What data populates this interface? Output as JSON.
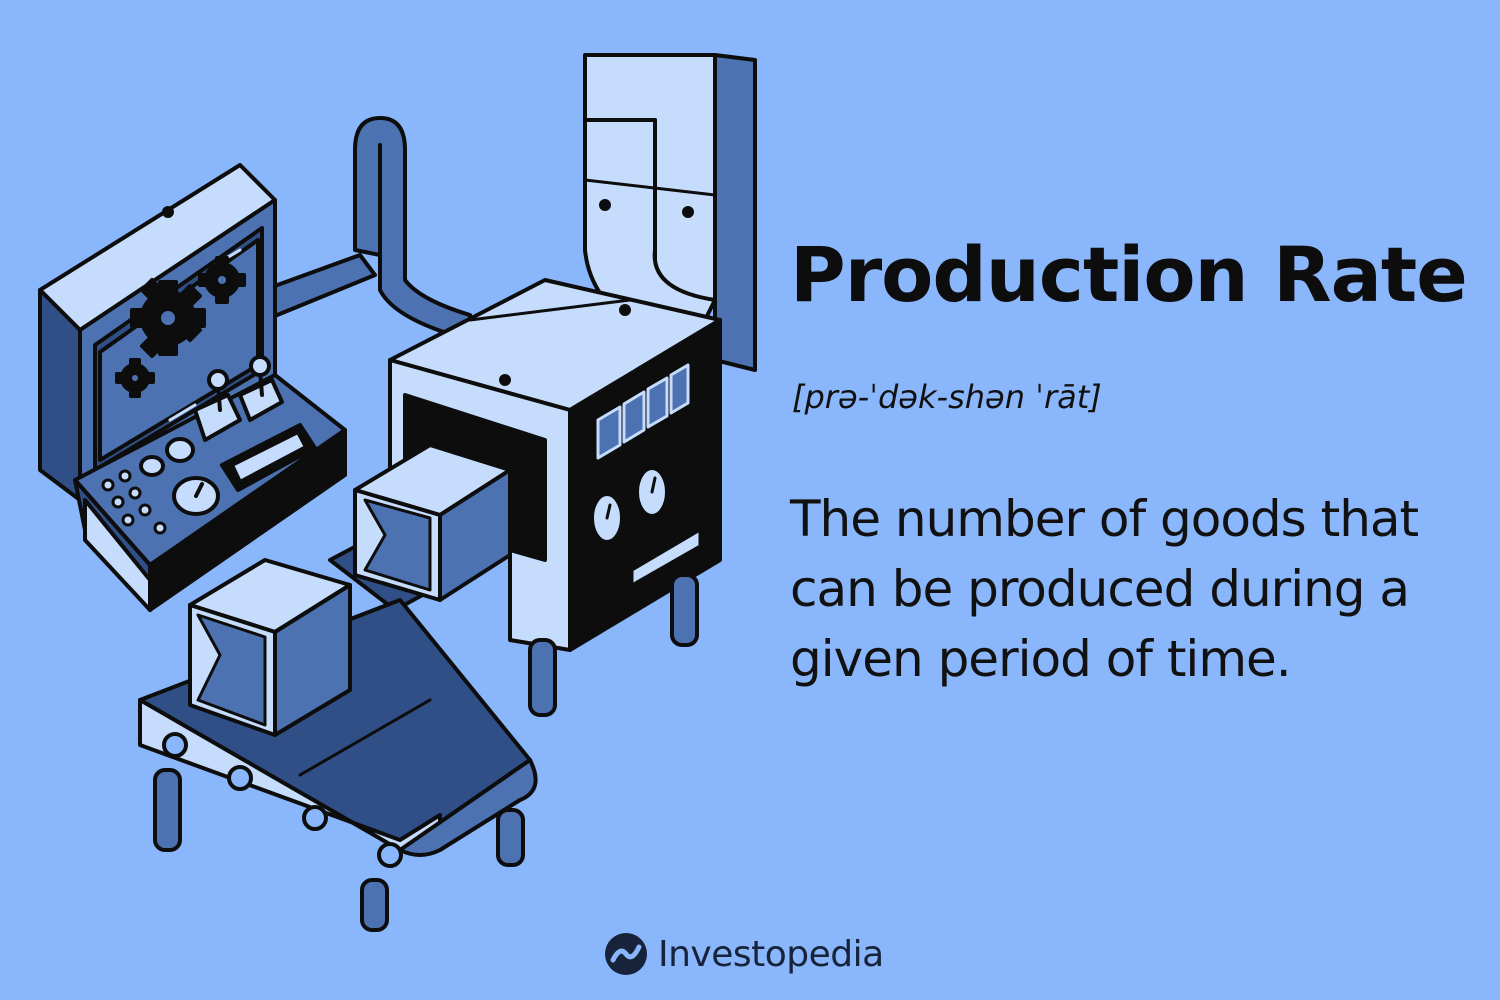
{
  "infographic": {
    "title": "Production Rate",
    "pronunciation": "[prə-ˈdək-shən ˈrāt]",
    "definition": "The number of goods that can be produced during a given period of time."
  },
  "brand": {
    "name": "Investopedia",
    "logo_icon": "investopedia-logo-icon"
  },
  "illustration": {
    "subject": "factory-machine-conveyor-illustration",
    "icons": [
      "gear-icon",
      "gauge-icon",
      "joystick-icon",
      "box-icon",
      "conveyor-icon"
    ]
  },
  "colors": {
    "background": "#8ab6fb",
    "machine_light": "#c6dcfd",
    "machine_mid": "#4d72b1",
    "machine_dark": "#2f4f86",
    "ink": "#0d0d0d"
  }
}
